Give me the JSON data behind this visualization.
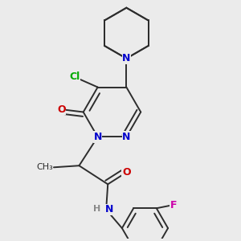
{
  "background_color": "#ebebeb",
  "bond_color": "#2d2d2d",
  "atom_colors": {
    "N": "#0000cc",
    "O": "#cc0000",
    "Cl": "#00aa00",
    "F": "#cc00aa",
    "H": "#888888",
    "C": "#2d2d2d"
  },
  "font_size": 9,
  "line_width": 1.4,
  "fig_width": 3.0,
  "fig_height": 3.0,
  "dpi": 100
}
